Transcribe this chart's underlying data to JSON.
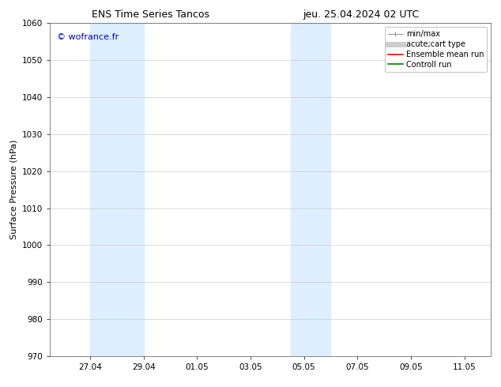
{
  "title_left": "ENS Time Series Tancos",
  "title_right": "jeu. 25.04.2024 02 UTC",
  "ylabel": "Surface Pressure (hPa)",
  "ylim": [
    970,
    1060
  ],
  "yticks": [
    970,
    980,
    990,
    1000,
    1010,
    1020,
    1030,
    1040,
    1050,
    1060
  ],
  "xtick_labels": [
    "27.04",
    "29.04",
    "01.05",
    "03.05",
    "05.05",
    "07.05",
    "09.05",
    "11.05"
  ],
  "xtick_positions": [
    2,
    4,
    6,
    8,
    10,
    12,
    14,
    16
  ],
  "xmin": 0.5,
  "xmax": 17.0,
  "shade_bands": [
    {
      "xmin": 2.0,
      "xmax": 4.0
    },
    {
      "xmin": 9.5,
      "xmax": 11.0
    }
  ],
  "shade_color": "#ddeeff",
  "watermark_text": "© wofrance.fr",
  "watermark_color": "#0000cc",
  "legend_entries": [
    {
      "label": "min/max",
      "color": "#aaaaaa",
      "lw": 1.0
    },
    {
      "label": "acute;cart type",
      "color": "#cccccc",
      "lw": 5
    },
    {
      "label": "Ensemble mean run",
      "color": "red",
      "lw": 1.2
    },
    {
      "label": "Controll run",
      "color": "green",
      "lw": 1.2
    }
  ],
  "bg_color": "#ffffff",
  "grid_color": "#cccccc",
  "title_fontsize": 9,
  "axis_label_fontsize": 8,
  "tick_fontsize": 7.5,
  "watermark_fontsize": 8,
  "legend_fontsize": 7
}
